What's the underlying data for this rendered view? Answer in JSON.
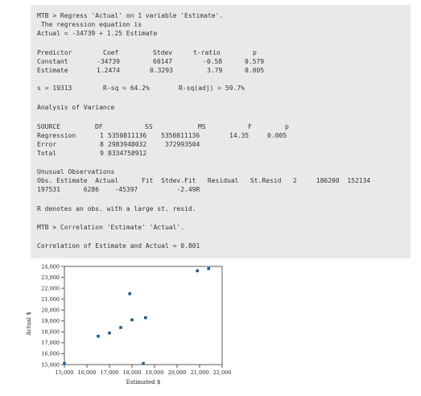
{
  "session": {
    "regress_command": "MTB > Regress 'Actual' on 1 variable 'Estimate'.",
    "equation_heading": " The regression equation is",
    "equation": "Actual = -34739 + 1.25 Estimate",
    "predictor_table": {
      "headers": [
        "Predictor",
        "Coef",
        "Stdev",
        "t-ratio",
        "p"
      ],
      "rows": [
        [
          "Constant",
          "-34739",
          "60147",
          "-0.58",
          "0.579"
        ],
        [
          "Estimate",
          "1.2474",
          "0.3293",
          "3.79",
          "0.005"
        ]
      ]
    },
    "fit_summary": {
      "s": "s = 19313",
      "rsq": "R-sq = 64.2%",
      "rsq_adj": "R-sq(adj) = 59.7%"
    },
    "anova_title": "Analysis of Variance",
    "anova_table": {
      "headers": [
        "SOURCE",
        "DF",
        "SS",
        "MS",
        "F",
        "p"
      ],
      "rows": [
        [
          "Regression",
          "1",
          "5350811136",
          "5350811136",
          "14.35",
          "0.005"
        ],
        [
          "Error",
          "8",
          "2983948032",
          "372993504",
          "",
          ""
        ],
        [
          "Total",
          "9",
          "8334758912",
          "",
          "",
          ""
        ]
      ]
    },
    "unusual_title": "Unusual Observations",
    "unusual_header": "Obs. Estimate  Actual      Fit  Stdev.Fit   Residual   St.Resid   2     186200  152134",
    "unusual_row": "197531      6286    -45397          -2.49R",
    "unusual_note": "R denotes an obs. with a large st. resid.",
    "correlation_command": "MTB > Correlation 'Estimate' 'Actual'.",
    "correlation_result": "Correlation of Estimate and Actual = 0.801"
  },
  "chart_data": {
    "type": "scatter",
    "xlabel": "Estimated $",
    "ylabel": "Actual $",
    "xlim": [
      15000,
      22000
    ],
    "ylim": [
      15000,
      24000
    ],
    "xticks": [
      "15,000",
      "16,000",
      "17,000",
      "18,000",
      "19,000",
      "20,000",
      "21,000",
      "22,000"
    ],
    "yticks": [
      "15,000",
      "16,000",
      "17,000",
      "18,000",
      "19,000",
      "20,000",
      "21,000",
      "22,000",
      "23,000",
      "24,000"
    ],
    "x": [
      15000,
      16500,
      17000,
      17500,
      17900,
      18000,
      18500,
      18600,
      20900,
      21400
    ],
    "y": [
      15100,
      17600,
      17900,
      18400,
      21500,
      19100,
      15100,
      19300,
      23600,
      23800
    ],
    "marker_color": "#1f5d8f"
  }
}
